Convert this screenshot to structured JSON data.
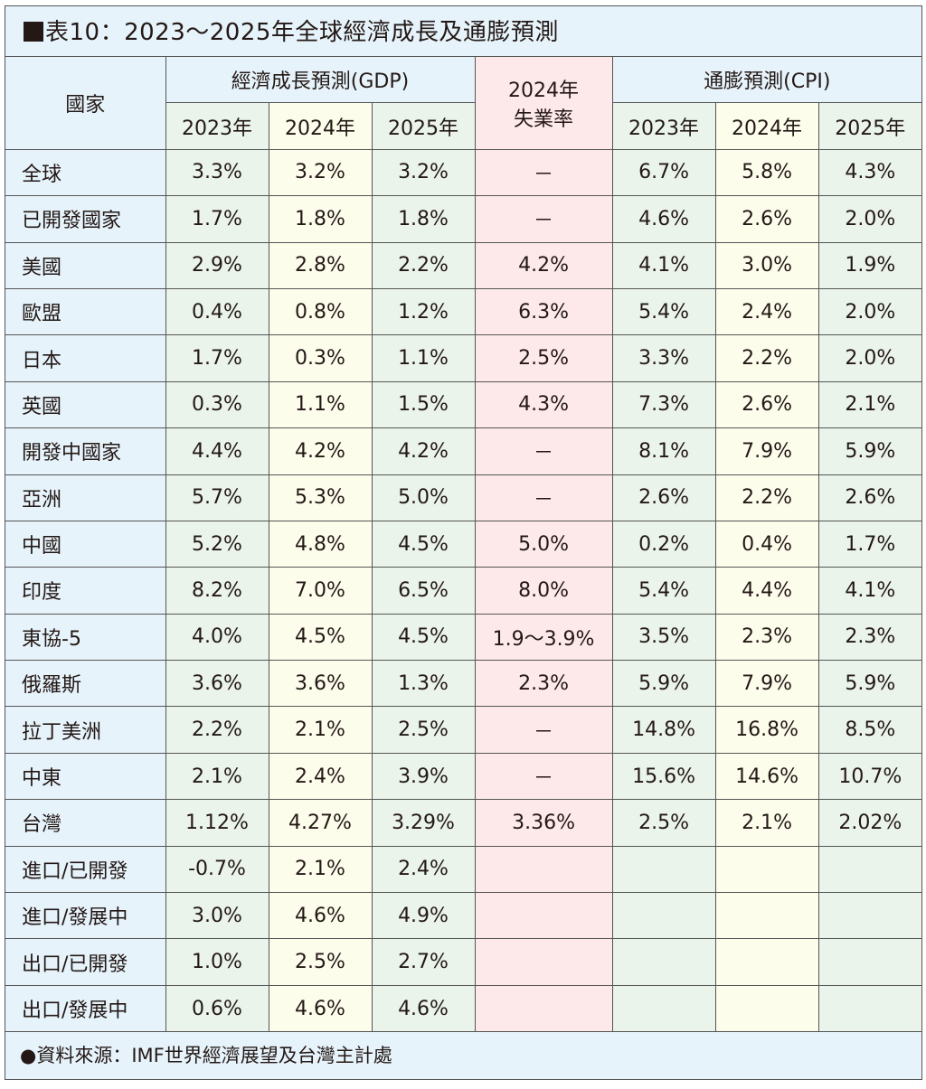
{
  "title": "表10：2023～2025年全球經濟成長及通膨預測",
  "source": "●資料來源：IMF世界經濟展望及台灣主計處",
  "colors": {
    "header": "#e6f3fb",
    "col_green": "#eaf4ea",
    "col_yellow": "#fdfdec",
    "unemployment": "#fde9e9",
    "border": "#555555"
  },
  "chart_data": {
    "type": "table",
    "title": "表10：2023～2025年全球經濟成長及通膨預測",
    "headers": {
      "country": "國家",
      "gdp_group": "經濟成長預測(GDP)",
      "unemp_line1": "2024年",
      "unemp_line2": "失業率",
      "cpi_group": "通膨預測(CPI)",
      "years": [
        "2023年",
        "2024年",
        "2025年"
      ]
    },
    "rows": [
      [
        "全球",
        "3.3%",
        "3.2%",
        "3.2%",
        "－",
        "6.7%",
        "5.8%",
        "4.3%"
      ],
      [
        "已開發國家",
        "1.7%",
        "1.8%",
        "1.8%",
        "－",
        "4.6%",
        "2.6%",
        "2.0%"
      ],
      [
        "美國",
        "2.9%",
        "2.8%",
        "2.2%",
        "4.2%",
        "4.1%",
        "3.0%",
        "1.9%"
      ],
      [
        "歐盟",
        "0.4%",
        "0.8%",
        "1.2%",
        "6.3%",
        "5.4%",
        "2.4%",
        "2.0%"
      ],
      [
        "日本",
        "1.7%",
        "0.3%",
        "1.1%",
        "2.5%",
        "3.3%",
        "2.2%",
        "2.0%"
      ],
      [
        "英國",
        "0.3%",
        "1.1%",
        "1.5%",
        "4.3%",
        "7.3%",
        "2.6%",
        "2.1%"
      ],
      [
        "開發中國家",
        "4.4%",
        "4.2%",
        "4.2%",
        "－",
        "8.1%",
        "7.9%",
        "5.9%"
      ],
      [
        "亞洲",
        "5.7%",
        "5.3%",
        "5.0%",
        "－",
        "2.6%",
        "2.2%",
        "2.6%"
      ],
      [
        "中國",
        "5.2%",
        "4.8%",
        "4.5%",
        "5.0%",
        "0.2%",
        "0.4%",
        "1.7%"
      ],
      [
        "印度",
        "8.2%",
        "7.0%",
        "6.5%",
        "8.0%",
        "5.4%",
        "4.4%",
        "4.1%"
      ],
      [
        "東協-5",
        "4.0%",
        "4.5%",
        "4.5%",
        "1.9～3.9%",
        "3.5%",
        "2.3%",
        "2.3%"
      ],
      [
        "俄羅斯",
        "3.6%",
        "3.6%",
        "1.3%",
        "2.3%",
        "5.9%",
        "7.9%",
        "5.9%"
      ],
      [
        "拉丁美洲",
        "2.2%",
        "2.1%",
        "2.5%",
        "－",
        "14.8%",
        "16.8%",
        "8.5%"
      ],
      [
        "中東",
        "2.1%",
        "2.4%",
        "3.9%",
        "－",
        "15.6%",
        "14.6%",
        "10.7%"
      ],
      [
        "台灣",
        "1.12%",
        "4.27%",
        "3.29%",
        "3.36%",
        "2.5%",
        "2.1%",
        "2.02%"
      ],
      [
        "進口/已開發",
        "-0.7%",
        "2.1%",
        "2.4%",
        "",
        "",
        "",
        ""
      ],
      [
        "進口/發展中",
        "3.0%",
        "4.6%",
        "4.9%",
        "",
        "",
        "",
        ""
      ],
      [
        "出口/已開發",
        "1.0%",
        "2.5%",
        "2.7%",
        "",
        "",
        "",
        ""
      ],
      [
        "出口/發展中",
        "0.6%",
        "4.6%",
        "4.6%",
        "",
        "",
        "",
        ""
      ]
    ]
  }
}
